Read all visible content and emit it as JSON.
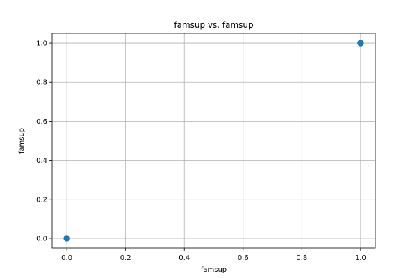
{
  "chart_data": {
    "type": "scatter",
    "title": "famsup vs. famsup",
    "xlabel": "famsup",
    "ylabel": "famsup",
    "xlim": [
      -0.05,
      1.05
    ],
    "ylim": [
      -0.05,
      1.05
    ],
    "xticks": [
      0.0,
      0.2,
      0.4,
      0.6,
      0.8,
      1.0
    ],
    "yticks": [
      0.0,
      0.2,
      0.4,
      0.6,
      0.8,
      1.0
    ],
    "xtick_labels": [
      "0.0",
      "0.2",
      "0.4",
      "0.6",
      "0.8",
      "1.0"
    ],
    "ytick_labels": [
      "0.0",
      "0.2",
      "0.4",
      "0.6",
      "0.8",
      "1.0"
    ],
    "grid": true,
    "points": [
      {
        "x": 0,
        "y": 0
      },
      {
        "x": 1,
        "y": 1
      }
    ],
    "marker_color": "#1f77b4"
  }
}
